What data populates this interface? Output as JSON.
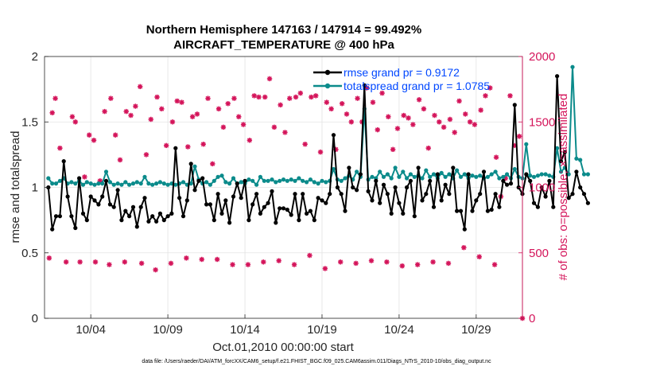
{
  "chart_data": {
    "type": "line",
    "title": "Northern Hemisphere 147163 / 147914 = 99.492%",
    "subtitle": "AIRCRAFT_TEMPERATURE @ 400 hPa",
    "xlabel": "Oct.01,2010 00:00:00 start",
    "ylabel_left": "rmse and totalspread",
    "ylabel_right": "# of obs: o=possible; ×=assimilated",
    "footnote": "data file: /Users/raeder/DAI/ATM_forcXX/CAM6_setup/f.e21.FHIST_BGC.f09_025.CAM6assim.011/Diags_NTrS_2010-10/obs_diag_output.nc",
    "x_ticks": [
      "10/04",
      "10/09",
      "10/14",
      "10/19",
      "10/24",
      "10/29"
    ],
    "x_tick_days": [
      4,
      9,
      14,
      19,
      24,
      29
    ],
    "xlim": [
      1.0,
      32.0
    ],
    "ylim_left": [
      0,
      2
    ],
    "ylim_right": [
      0,
      2000
    ],
    "yticks_left": [
      "0",
      "0.5",
      "1",
      "1.5",
      "2"
    ],
    "yticks_right": [
      "0",
      "500",
      "1000",
      "1500",
      "2000"
    ],
    "grid": true,
    "legend_position": "top-right",
    "x_start_day": 1.25,
    "x_step_days": 0.25,
    "series": [
      {
        "name": "rmse grand pr = 0.9172",
        "color": "#000000",
        "axis": "left",
        "values": [
          1.0,
          0.68,
          0.78,
          0.78,
          1.2,
          0.93,
          0.78,
          0.69,
          1.07,
          0.8,
          0.75,
          0.93,
          0.9,
          0.87,
          0.93,
          1.05,
          0.87,
          0.85,
          0.98,
          0.75,
          0.82,
          0.78,
          0.85,
          0.7,
          0.85,
          0.92,
          0.74,
          0.78,
          0.74,
          0.8,
          0.75,
          0.78,
          0.8,
          1.3,
          0.92,
          0.78,
          0.9,
          1.18,
          0.98,
          1.05,
          1.07,
          0.87,
          0.87,
          0.75,
          0.95,
          0.8,
          0.9,
          0.73,
          0.93,
          1.03,
          0.92,
          1.05,
          0.75,
          0.87,
          0.95,
          0.8,
          0.85,
          0.88,
          0.97,
          0.73,
          0.84,
          0.84,
          0.83,
          0.79,
          0.95,
          0.75,
          0.95,
          0.8,
          0.82,
          0.75,
          0.92,
          0.9,
          0.88,
          0.95,
          1.4,
          1.0,
          0.95,
          0.82,
          1.15,
          1.0,
          0.98,
          1.1,
          1.78,
          0.97,
          0.9,
          1.05,
          0.88,
          1.02,
          0.95,
          0.8,
          1.0,
          0.88,
          0.8,
          1.0,
          1.05,
          0.78,
          1.15,
          0.9,
          0.95,
          1.05,
          0.85,
          1.1,
          0.9,
          1.02,
          0.95,
          1.15,
          0.82,
          0.82,
          0.68,
          1.1,
          0.82,
          0.9,
          0.95,
          1.12,
          0.82,
          0.83,
          0.95,
          0.85,
          1.05,
          1.02,
          1.03,
          1.63,
          1.0,
          0.95,
          1.1,
          1.05,
          0.88,
          0.85,
          1.0,
          0.93,
          1.05,
          0.85,
          1.85,
          1.2,
          1.27,
          0.92,
          0.95,
          1.12,
          1.0,
          0.95,
          0.88
        ]
      },
      {
        "name": "totalspread grand pr = 1.0785",
        "color": "#0b8b8b",
        "axis": "left",
        "values": [
          1.07,
          1.03,
          1.03,
          1.05,
          1.07,
          1.03,
          1.04,
          1.03,
          1.05,
          1.02,
          1.04,
          1.03,
          1.02,
          1.03,
          1.03,
          1.12,
          1.04,
          1.02,
          1.03,
          1.02,
          1.04,
          1.02,
          1.03,
          1.04,
          1.03,
          1.08,
          1.03,
          1.02,
          1.03,
          1.04,
          1.03,
          1.02,
          1.03,
          1.02,
          1.03,
          1.04,
          1.02,
          1.03,
          1.16,
          1.06,
          1.03,
          1.04,
          1.02,
          1.05,
          1.08,
          1.09,
          1.04,
          1.03,
          1.07,
          1.03,
          1.04,
          1.03,
          1.06,
          1.05,
          1.02,
          1.08,
          1.05,
          1.05,
          1.06,
          1.04,
          1.05,
          1.06,
          1.05,
          1.06,
          1.05,
          1.07,
          1.05,
          1.04,
          1.06,
          1.04,
          1.03,
          1.05,
          1.04,
          1.05,
          1.14,
          1.06,
          1.05,
          1.07,
          1.09,
          1.06,
          1.12,
          1.08,
          1.6,
          1.06,
          1.08,
          1.07,
          1.12,
          1.08,
          1.1,
          1.07,
          1.15,
          1.08,
          1.12,
          1.07,
          1.1,
          1.08,
          1.09,
          1.07,
          1.13,
          1.08,
          1.1,
          1.07,
          1.11,
          1.08,
          1.1,
          1.07,
          1.13,
          1.08,
          1.1,
          1.07,
          1.09,
          1.08,
          1.09,
          1.07,
          1.08,
          1.1,
          1.12,
          1.07,
          1.08,
          1.1,
          1.07,
          1.14,
          1.08,
          1.07,
          1.33,
          1.09,
          1.08,
          1.09,
          1.1,
          1.1,
          1.09,
          1.08,
          1.3,
          1.12,
          1.15,
          1.1,
          1.92,
          1.22,
          1.21,
          1.1,
          1.1
        ]
      }
    ],
    "obs_points": [
      {
        "day": 1.3,
        "n": 460
      },
      {
        "day": 1.5,
        "n": 1570
      },
      {
        "day": 1.7,
        "n": 1680
      },
      {
        "day": 2.0,
        "n": 1300
      },
      {
        "day": 2.4,
        "n": 430
      },
      {
        "day": 2.8,
        "n": 1540
      },
      {
        "day": 3.0,
        "n": 1500
      },
      {
        "day": 3.3,
        "n": 430
      },
      {
        "day": 3.6,
        "n": 1080
      },
      {
        "day": 3.9,
        "n": 1400
      },
      {
        "day": 4.2,
        "n": 1360
      },
      {
        "day": 4.3,
        "n": 430
      },
      {
        "day": 4.6,
        "n": 1050
      },
      {
        "day": 4.9,
        "n": 1580
      },
      {
        "day": 5.2,
        "n": 410
      },
      {
        "day": 5.3,
        "n": 1680
      },
      {
        "day": 5.6,
        "n": 1400
      },
      {
        "day": 5.9,
        "n": 1210
      },
      {
        "day": 6.2,
        "n": 430
      },
      {
        "day": 6.3,
        "n": 1580
      },
      {
        "day": 6.6,
        "n": 1550
      },
      {
        "day": 6.9,
        "n": 1620
      },
      {
        "day": 7.2,
        "n": 1770
      },
      {
        "day": 7.3,
        "n": 420
      },
      {
        "day": 7.6,
        "n": 1250
      },
      {
        "day": 7.9,
        "n": 1520
      },
      {
        "day": 8.2,
        "n": 370
      },
      {
        "day": 8.3,
        "n": 1690
      },
      {
        "day": 8.6,
        "n": 1600
      },
      {
        "day": 8.9,
        "n": 1320
      },
      {
        "day": 9.2,
        "n": 420
      },
      {
        "day": 9.3,
        "n": 1500
      },
      {
        "day": 9.6,
        "n": 1660
      },
      {
        "day": 9.9,
        "n": 1650
      },
      {
        "day": 10.2,
        "n": 460
      },
      {
        "day": 10.3,
        "n": 1310
      },
      {
        "day": 10.6,
        "n": 1540
      },
      {
        "day": 10.9,
        "n": 1560
      },
      {
        "day": 11.2,
        "n": 450
      },
      {
        "day": 11.3,
        "n": 1330
      },
      {
        "day": 11.6,
        "n": 1680
      },
      {
        "day": 11.9,
        "n": 1180
      },
      {
        "day": 12.2,
        "n": 450
      },
      {
        "day": 12.3,
        "n": 1600
      },
      {
        "day": 12.6,
        "n": 1460
      },
      {
        "day": 12.9,
        "n": 1640
      },
      {
        "day": 13.2,
        "n": 410
      },
      {
        "day": 13.3,
        "n": 1680
      },
      {
        "day": 13.6,
        "n": 1540
      },
      {
        "day": 13.9,
        "n": 1480
      },
      {
        "day": 14.2,
        "n": 410
      },
      {
        "day": 14.3,
        "n": 1360
      },
      {
        "day": 14.6,
        "n": 1700
      },
      {
        "day": 14.9,
        "n": 1690
      },
      {
        "day": 15.2,
        "n": 430
      },
      {
        "day": 15.3,
        "n": 1690
      },
      {
        "day": 15.6,
        "n": 1830
      },
      {
        "day": 15.9,
        "n": 1460
      },
      {
        "day": 16.2,
        "n": 440
      },
      {
        "day": 16.3,
        "n": 1630
      },
      {
        "day": 16.6,
        "n": 1420
      },
      {
        "day": 16.9,
        "n": 1680
      },
      {
        "day": 17.2,
        "n": 410
      },
      {
        "day": 17.3,
        "n": 1690
      },
      {
        "day": 17.6,
        "n": 1720
      },
      {
        "day": 17.9,
        "n": 1330
      },
      {
        "day": 18.2,
        "n": 480
      },
      {
        "day": 18.3,
        "n": 1690
      },
      {
        "day": 18.6,
        "n": 1700
      },
      {
        "day": 18.9,
        "n": 1270
      },
      {
        "day": 19.2,
        "n": 380
      },
      {
        "day": 19.3,
        "n": 1650
      },
      {
        "day": 19.6,
        "n": 1600
      },
      {
        "day": 19.9,
        "n": 1290
      },
      {
        "day": 20.2,
        "n": 430
      },
      {
        "day": 20.3,
        "n": 1640
      },
      {
        "day": 20.6,
        "n": 1560
      },
      {
        "day": 20.9,
        "n": 1500
      },
      {
        "day": 21.2,
        "n": 420
      },
      {
        "day": 21.3,
        "n": 1680
      },
      {
        "day": 21.6,
        "n": 1500
      },
      {
        "day": 21.9,
        "n": 1760
      },
      {
        "day": 22.2,
        "n": 440
      },
      {
        "day": 22.3,
        "n": 1650
      },
      {
        "day": 22.6,
        "n": 1440
      },
      {
        "day": 22.9,
        "n": 1720
      },
      {
        "day": 23.2,
        "n": 430
      },
      {
        "day": 23.3,
        "n": 1540
      },
      {
        "day": 23.6,
        "n": 1290
      },
      {
        "day": 23.9,
        "n": 1450
      },
      {
        "day": 24.2,
        "n": 400
      },
      {
        "day": 24.3,
        "n": 1550
      },
      {
        "day": 24.6,
        "n": 1530
      },
      {
        "day": 24.9,
        "n": 1480
      },
      {
        "day": 25.2,
        "n": 410
      },
      {
        "day": 25.3,
        "n": 1670
      },
      {
        "day": 25.6,
        "n": 1600
      },
      {
        "day": 25.9,
        "n": 1300
      },
      {
        "day": 26.2,
        "n": 430
      },
      {
        "day": 26.3,
        "n": 1550
      },
      {
        "day": 26.6,
        "n": 1500
      },
      {
        "day": 26.9,
        "n": 1460
      },
      {
        "day": 27.2,
        "n": 420
      },
      {
        "day": 27.3,
        "n": 1520
      },
      {
        "day": 27.6,
        "n": 1420
      },
      {
        "day": 27.9,
        "n": 1660
      },
      {
        "day": 28.2,
        "n": 540
      },
      {
        "day": 28.3,
        "n": 1560
      },
      {
        "day": 28.6,
        "n": 1500
      },
      {
        "day": 28.9,
        "n": 1480
      },
      {
        "day": 29.2,
        "n": 470
      },
      {
        "day": 29.3,
        "n": 1590
      },
      {
        "day": 29.6,
        "n": 1700
      },
      {
        "day": 29.9,
        "n": 1760
      },
      {
        "day": 30.2,
        "n": 410
      },
      {
        "day": 30.3,
        "n": 1230
      },
      {
        "day": 30.6,
        "n": 930
      },
      {
        "day": 30.9,
        "n": 1070
      },
      {
        "day": 31.2,
        "n": 1700
      },
      {
        "day": 31.5,
        "n": 1320
      },
      {
        "day": 31.8,
        "n": 1390
      },
      {
        "day": 32.0,
        "n": 0
      }
    ],
    "obs_color": "#d4145a"
  }
}
